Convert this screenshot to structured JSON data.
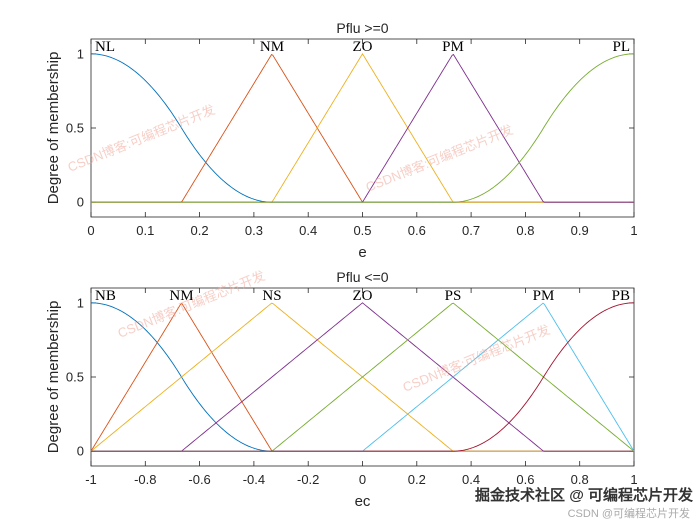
{
  "chart_data": [
    {
      "type": "line",
      "title": "Pflu >=0",
      "xlabel": "e",
      "ylabel": "Degree of membership",
      "xlim": [
        0,
        1
      ],
      "ylim": [
        -0.1,
        1.1
      ],
      "xticks": [
        "0",
        "0.1",
        "0.2",
        "0.3",
        "0.4",
        "0.5",
        "0.6",
        "0.7",
        "0.8",
        "0.9",
        "1"
      ],
      "yticks": [
        "0",
        "0.5",
        "1"
      ],
      "series": [
        {
          "name": "NL",
          "shape": "zmf",
          "params": [
            0,
            0.3333
          ],
          "color": "#0072bd"
        },
        {
          "name": "NM",
          "shape": "trimf",
          "params": [
            0.1667,
            0.3333,
            0.5
          ],
          "color": "#d95319"
        },
        {
          "name": "ZO",
          "shape": "trimf",
          "params": [
            0.3333,
            0.5,
            0.6667
          ],
          "color": "#edb120"
        },
        {
          "name": "PM",
          "shape": "trimf",
          "params": [
            0.5,
            0.6667,
            0.8333
          ],
          "color": "#7e2f8e"
        },
        {
          "name": "PL",
          "shape": "smf",
          "params": [
            0.6667,
            1
          ],
          "color": "#77ac30"
        }
      ]
    },
    {
      "type": "line",
      "title": "Pflu <=0",
      "xlabel": "ec",
      "ylabel": "Degree of membership",
      "xlim": [
        -1,
        1
      ],
      "ylim": [
        -0.1,
        1.1
      ],
      "xticks": [
        "-1",
        "-0.8",
        "-0.6",
        "-0.4",
        "-0.2",
        "0",
        "0.2",
        "0.4",
        "0.6",
        "0.8",
        "1"
      ],
      "yticks": [
        "0",
        "0.5",
        "1"
      ],
      "series": [
        {
          "name": "NB",
          "shape": "zmf",
          "params": [
            -1,
            -0.3333
          ],
          "color": "#0072bd"
        },
        {
          "name": "NM",
          "shape": "trimf",
          "params": [
            -1,
            -0.6667,
            -0.3333
          ],
          "color": "#d95319"
        },
        {
          "name": "NS",
          "shape": "trimf",
          "params": [
            -1,
            -0.3333,
            0.3333
          ],
          "color": "#edb120"
        },
        {
          "name": "ZO",
          "shape": "trimf",
          "params": [
            -0.6667,
            0,
            0.6667
          ],
          "color": "#7e2f8e"
        },
        {
          "name": "PS",
          "shape": "trimf",
          "params": [
            -0.3333,
            0.3333,
            1
          ],
          "color": "#77ac30"
        },
        {
          "name": "PM",
          "shape": "trimf",
          "params": [
            0,
            0.6667,
            1
          ],
          "color": "#4dbeee"
        },
        {
          "name": "PB",
          "shape": "smf",
          "params": [
            0.3333,
            1
          ],
          "color": "#a2142f"
        }
      ]
    }
  ],
  "watermarks": [
    "CSDN博客:可编程芯片开发",
    "CSDN博客:可编程芯片开发",
    "CSDN博客:可编程芯片开发",
    "CSDN博客:可编程芯片开发"
  ],
  "footer": {
    "credit_main": "掘金技术社区 @ 可编程芯片开发",
    "credit_sub": "CSDN @可编程芯片开发"
  }
}
